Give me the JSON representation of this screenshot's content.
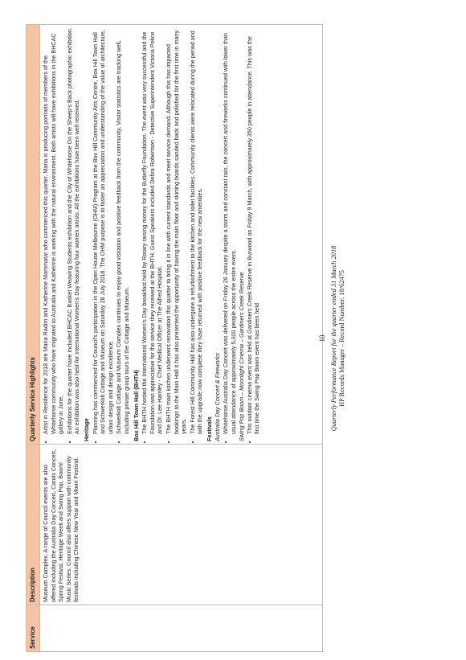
{
  "table": {
    "headers": [
      "Service",
      "Description",
      "Quarterly Service Highlights"
    ],
    "description": "Museum Complex. A range of Council events are also offered including the Australia Day Concert, Carols Concert, Spring Festival, Heritage Week and Swing Pop, Boom! Music Series. Council also offers support with community festivals including Chinese New Year and Moon Festival.",
    "intro_bullets": [
      "Artist in Residence for 2018 are Maria Radim and Katherine Mammatar who commenced this quarter. Maria is producing portraits of members of the Whitehorse community who have migrated to Australia and Katherine is working with the natural environment. Both artists will have exhibitions in the BHCAC gallery in June.",
      "Exhibitions for the quarter have included BHCAC Basket Weaving Students exhibition and the City of Whitehorse On the Sheep's Back photographic exhibition. An exhibition was also held for International Women's Day featuring four women artists. All the exhibitions have been well received."
    ],
    "heritage": {
      "title": "Heritage",
      "bullets": [
        "Planning has commenced for Council's participation in the Open House Melbourne (OHM) Program at the Box Hill Community Arts Centre, Box Hill Town Hall and Schwerkolt Cottage and Museum on Saturday 28 July 2018. The OHM purpose is to foster an appreciation and understanding of the value of architecture, urban design and design excellence.",
        "Schwerkolt Cottage and Museum Complex continues to enjoy good visitation and positive feedback from the community. Visitor statistics are tracking well, including private group tours of the Cottage and Museum."
      ]
    },
    "town_hall": {
      "title": "Box Hill Town Hall (BHTH)",
      "bullets": [
        "The BHTH hosted the International Women's Day breakfast held by Rotary raising money for the Butterfly Foundation. The event was very successful and the Foundation was appreciative for the service they received at the BHTH. Guest Speakers included Debra Robertson - Detective Superintendent Victoria Police and Dr. Lee Hamley - Chief Medical Officer at The Alfred Hospital.",
        "The BHTH main kitchen underwent renovation this quarter to bring it in line with current standards and meet service demand. Although this has impacted bookings to the Main Hall it has also presented the opportunity of having the main floor and skirting boards sanded back and polished for the first time in many years.",
        "The Forest Hill Community Hall has also undergone a refurbishment to the kitchen and toilet facilities. Community clients were relocated during the period and with the upgrade now complete they have returned with positive feedback for the new amenities."
      ]
    },
    "festivals": {
      "title": "Festivals",
      "australia_day_title": "Australia Day Concert & Fireworks",
      "australia_day_bullets": [
        "Whitehorse Australia Day Concert was delivered on Friday 26 January despite a storm and constant rain, the concert and fireworks continued with lower than usual attendance of approximately 5,000 people across the entire event."
      ],
      "swing_pop_title": "Swing Pop Boom – Moonlight Cinema – Gardiners Creek Reserve",
      "swing_pop_bullets": [
        "This outdoor cinema event was held at Gardiners Creek Reserve in Burwood on Friday 9 March, with approximately 350 people in attendance. This was the first time the Swing Pop Boom event has been held"
      ]
    }
  },
  "footer": {
    "page_number": "10",
    "line1": "Quarterly Performance Report for the quarter ended 31 March 2018",
    "line2": "HP Records Manager – Record Number: 18/62475"
  },
  "colors": {
    "header_fill": "#f5c4a2"
  }
}
